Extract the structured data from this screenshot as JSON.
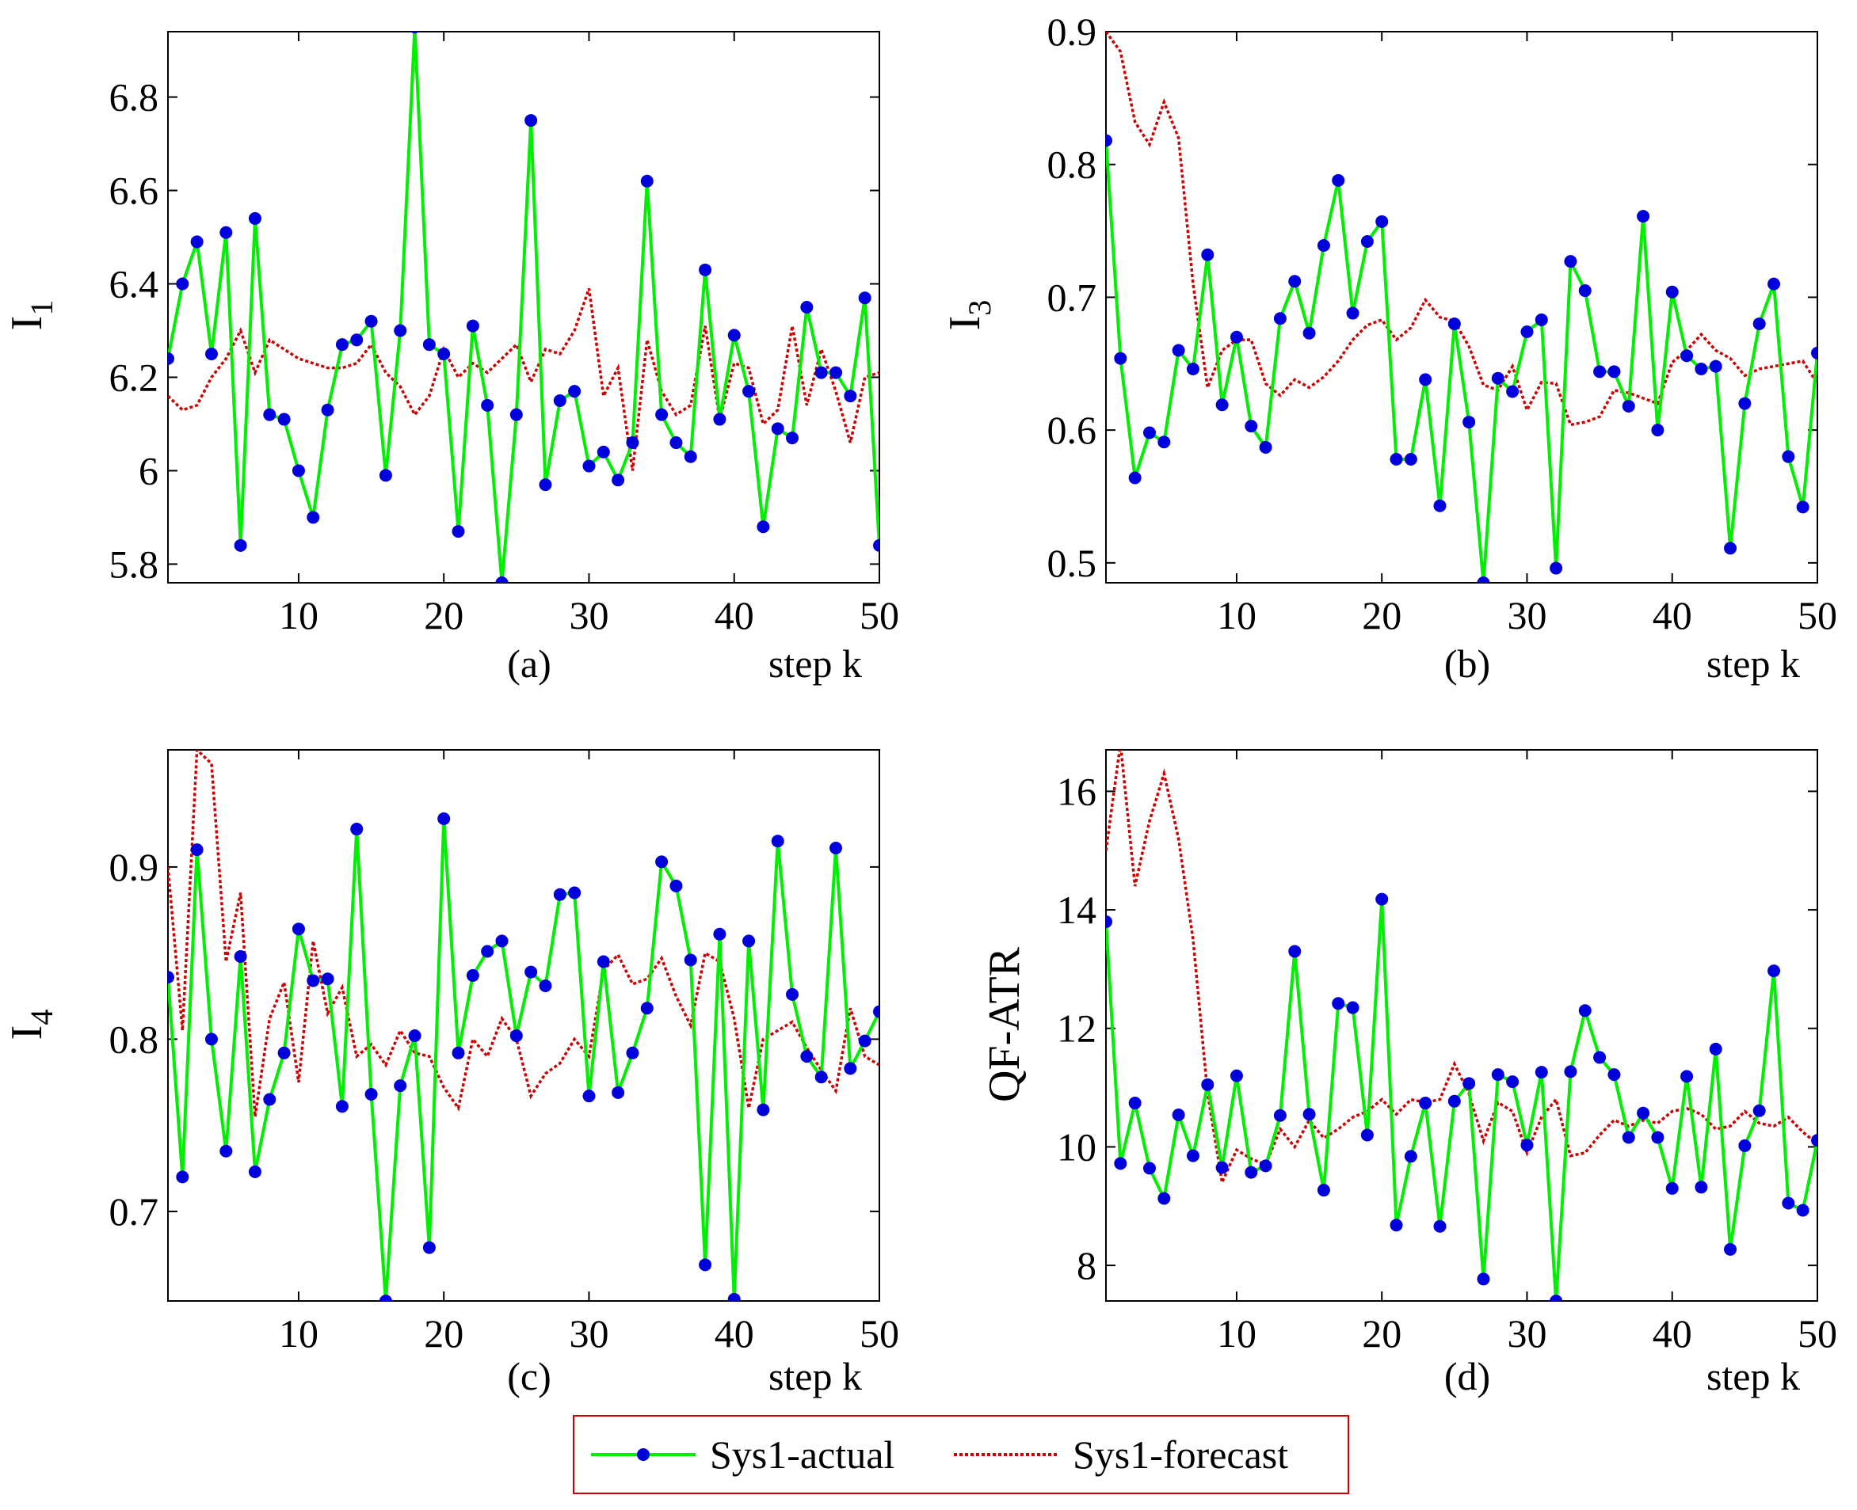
{
  "legend": {
    "actual_label": "Sys1-actual",
    "forecast_label": "Sys1-forecast"
  },
  "colors": {
    "actual_line": "#00ee00",
    "actual_marker": "#0000dd",
    "forecast_line": "#cc0000",
    "legend_border": "#cc0000"
  },
  "chart_data": [
    {
      "type": "line",
      "panel": "(a)",
      "xlabel": "step k",
      "ylabel": "I",
      "ylabel_sub": "1",
      "xlim": [
        1,
        50
      ],
      "ylim": [
        5.76,
        6.94
      ],
      "xticks": [
        10,
        20,
        30,
        40,
        50
      ],
      "yticks": [
        5.8,
        6,
        6.2,
        6.4,
        6.6,
        6.8
      ],
      "ytick_labels": [
        "5.8",
        "6",
        "6.2",
        "6.4",
        "6.6",
        "6.8"
      ],
      "series": [
        {
          "name": "Sys1-actual",
          "values": [
            6.24,
            6.4,
            6.49,
            6.25,
            6.51,
            5.84,
            6.54,
            6.12,
            6.11,
            6.0,
            5.9,
            6.13,
            6.27,
            6.28,
            6.32,
            5.99,
            6.3,
            6.95,
            6.27,
            6.25,
            5.87,
            6.31,
            6.14,
            5.76,
            6.12,
            6.75,
            5.97,
            6.15,
            6.17,
            6.01,
            6.04,
            5.98,
            6.06,
            6.62,
            6.12,
            6.06,
            6.03,
            6.43,
            6.11,
            6.29,
            6.17,
            5.88,
            6.09,
            6.07,
            6.35,
            6.21,
            6.21,
            6.16,
            6.37,
            5.84
          ]
        },
        {
          "name": "Sys1-forecast",
          "values": [
            6.16,
            6.13,
            6.14,
            6.2,
            6.24,
            6.3,
            6.21,
            6.28,
            6.26,
            6.24,
            6.23,
            6.22,
            6.22,
            6.23,
            6.27,
            6.21,
            6.18,
            6.12,
            6.16,
            6.26,
            6.2,
            6.23,
            6.21,
            6.24,
            6.27,
            6.19,
            6.26,
            6.25,
            6.3,
            6.39,
            6.16,
            6.22,
            6.0,
            6.28,
            6.17,
            6.12,
            6.14,
            6.31,
            6.11,
            6.23,
            6.22,
            6.1,
            6.13,
            6.31,
            6.14,
            6.26,
            6.17,
            6.06,
            6.2,
            6.21
          ]
        }
      ]
    },
    {
      "type": "line",
      "panel": "(b)",
      "xlabel": "step k",
      "ylabel": "I",
      "ylabel_sub": "3",
      "xlim": [
        1,
        50
      ],
      "ylim": [
        0.485,
        0.9
      ],
      "xticks": [
        10,
        20,
        30,
        40,
        50
      ],
      "yticks": [
        0.5,
        0.6,
        0.7,
        0.8,
        0.9
      ],
      "ytick_labels": [
        "0.5",
        "0.6",
        "0.7",
        "0.8",
        "0.9"
      ],
      "series": [
        {
          "name": "Sys1-actual",
          "values": [
            0.818,
            0.654,
            0.564,
            0.598,
            0.591,
            0.66,
            0.646,
            0.732,
            0.619,
            0.67,
            0.603,
            0.587,
            0.684,
            0.712,
            0.673,
            0.739,
            0.788,
            0.688,
            0.742,
            0.757,
            0.578,
            0.578,
            0.638,
            0.543,
            0.68,
            0.606,
            0.485,
            0.639,
            0.629,
            0.674,
            0.683,
            0.496,
            0.727,
            0.705,
            0.644,
            0.644,
            0.618,
            0.761,
            0.6,
            0.704,
            0.656,
            0.646,
            0.648,
            0.511,
            0.62,
            0.68,
            0.71,
            0.58,
            0.542,
            0.658
          ]
        },
        {
          "name": "Sys1-forecast",
          "values": [
            0.9,
            0.885,
            0.832,
            0.815,
            0.847,
            0.82,
            0.71,
            0.632,
            0.66,
            0.668,
            0.668,
            0.635,
            0.626,
            0.638,
            0.632,
            0.64,
            0.652,
            0.668,
            0.679,
            0.683,
            0.668,
            0.677,
            0.698,
            0.685,
            0.682,
            0.663,
            0.634,
            0.63,
            0.648,
            0.615,
            0.636,
            0.635,
            0.604,
            0.606,
            0.61,
            0.63,
            0.628,
            0.624,
            0.62,
            0.651,
            0.66,
            0.672,
            0.66,
            0.654,
            0.641,
            0.646,
            0.648,
            0.65,
            0.652,
            0.635
          ]
        }
      ]
    },
    {
      "type": "line",
      "panel": "(c)",
      "xlabel": "step k",
      "ylabel": "I",
      "ylabel_sub": "4",
      "xlim": [
        1,
        50
      ],
      "ylim": [
        0.648,
        0.968
      ],
      "xticks": [
        10,
        20,
        30,
        40,
        50
      ],
      "yticks": [
        0.7,
        0.8,
        0.9
      ],
      "ytick_labels": [
        "0.7",
        "0.8",
        "0.9"
      ],
      "series": [
        {
          "name": "Sys1-actual",
          "values": [
            0.836,
            0.72,
            0.91,
            0.8,
            0.735,
            0.848,
            0.723,
            0.765,
            0.792,
            0.864,
            0.834,
            0.835,
            0.761,
            0.922,
            0.768,
            0.648,
            0.773,
            0.802,
            0.679,
            0.928,
            0.792,
            0.837,
            0.851,
            0.857,
            0.802,
            0.839,
            0.831,
            0.884,
            0.885,
            0.767,
            0.845,
            0.769,
            0.792,
            0.818,
            0.903,
            0.889,
            0.846,
            0.669,
            0.861,
            0.649,
            0.857,
            0.759,
            0.915,
            0.826,
            0.79,
            0.778,
            0.911,
            0.783,
            0.799,
            0.816
          ]
        },
        {
          "name": "Sys1-forecast",
          "values": [
            0.9,
            0.805,
            0.968,
            0.96,
            0.845,
            0.885,
            0.755,
            0.812,
            0.833,
            0.775,
            0.857,
            0.815,
            0.83,
            0.79,
            0.797,
            0.785,
            0.805,
            0.792,
            0.79,
            0.772,
            0.76,
            0.8,
            0.79,
            0.812,
            0.8,
            0.767,
            0.78,
            0.786,
            0.8,
            0.79,
            0.84,
            0.849,
            0.832,
            0.835,
            0.847,
            0.825,
            0.808,
            0.85,
            0.845,
            0.812,
            0.76,
            0.8,
            0.805,
            0.81,
            0.795,
            0.782,
            0.77,
            0.818,
            0.79,
            0.785
          ]
        }
      ]
    },
    {
      "type": "line",
      "panel": "(d)",
      "xlabel": "step k",
      "ylabel": "QF-ATR",
      "ylabel_sub": "",
      "xlim": [
        1,
        50
      ],
      "ylim": [
        7.4,
        16.7
      ],
      "xticks": [
        10,
        20,
        30,
        40,
        50
      ],
      "yticks": [
        8,
        10,
        12,
        14,
        16
      ],
      "ytick_labels": [
        "8",
        "10",
        "12",
        "14",
        "16"
      ],
      "series": [
        {
          "name": "Sys1-actual",
          "values": [
            13.8,
            9.72,
            10.74,
            9.64,
            9.13,
            10.54,
            9.85,
            11.05,
            9.65,
            11.2,
            9.57,
            9.68,
            10.53,
            13.3,
            10.55,
            9.27,
            12.42,
            12.35,
            10.2,
            14.18,
            8.68,
            9.84,
            10.74,
            8.66,
            10.77,
            11.07,
            7.77,
            11.22,
            11.1,
            10.03,
            11.26,
            7.4,
            11.27,
            12.3,
            11.51,
            11.22,
            10.16,
            10.57,
            10.16,
            9.3,
            11.19,
            9.32,
            11.65,
            8.27,
            10.02,
            10.61,
            12.97,
            9.05,
            8.93,
            10.11
          ]
        },
        {
          "name": "Sys1-forecast",
          "values": [
            15.0,
            16.8,
            14.4,
            15.5,
            16.3,
            15.2,
            13.5,
            10.9,
            9.4,
            9.95,
            9.8,
            9.7,
            10.3,
            10.0,
            10.45,
            10.15,
            10.3,
            10.5,
            10.6,
            10.8,
            10.55,
            10.8,
            10.75,
            10.8,
            11.4,
            10.9,
            10.1,
            10.75,
            10.6,
            9.9,
            10.5,
            10.8,
            9.85,
            9.9,
            10.2,
            10.45,
            10.35,
            10.45,
            10.4,
            10.6,
            10.65,
            10.55,
            10.3,
            10.35,
            10.6,
            10.4,
            10.35,
            10.5,
            10.25,
            10.05
          ]
        }
      ]
    }
  ]
}
